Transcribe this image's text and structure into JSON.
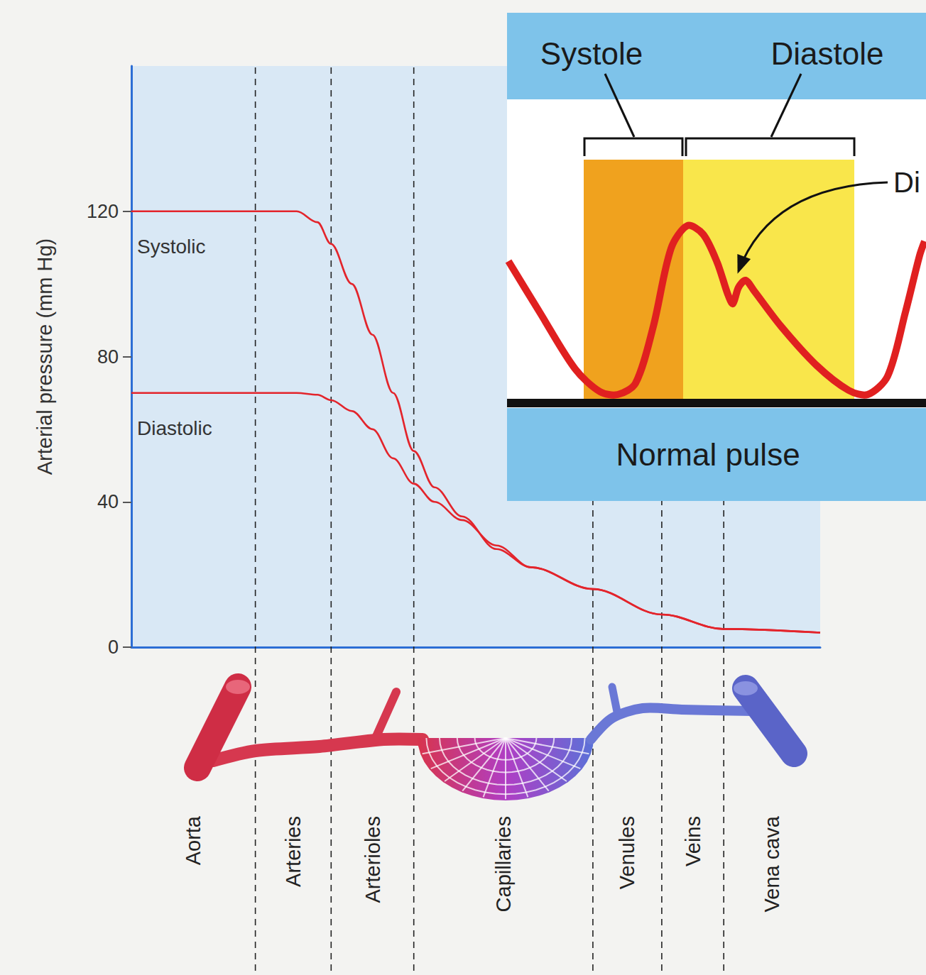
{
  "chart_data": {
    "type": "line",
    "y_label": "Arterial pressure (mm Hg)",
    "xlim": [
      0,
      100
    ],
    "ylim": [
      0,
      160
    ],
    "yticks": [
      0,
      40,
      80,
      120
    ],
    "grid": false,
    "tick_labels": "y",
    "regions": [
      {
        "label": "Aorta",
        "from": 0,
        "to": 18
      },
      {
        "label": "Arteries",
        "from": 18,
        "to": 29
      },
      {
        "label": "Arterioles",
        "from": 29,
        "to": 41
      },
      {
        "label": "Capillaries",
        "from": 41,
        "to": 67
      },
      {
        "label": "Venules",
        "from": 67,
        "to": 77
      },
      {
        "label": "Veins",
        "from": 77,
        "to": 86
      },
      {
        "label": "Vena cava",
        "from": 86,
        "to": 100
      }
    ],
    "x": [
      0,
      24,
      27,
      29,
      32,
      35,
      38,
      41,
      44,
      48,
      53,
      58,
      67,
      77,
      86,
      100
    ],
    "series": [
      {
        "name": "Systolic",
        "color": "#e3242b",
        "values": [
          120,
          120,
          117,
          111,
          100,
          86,
          70,
          54,
          44,
          36,
          27,
          22,
          16,
          9,
          5,
          4
        ]
      },
      {
        "name": "Diastolic",
        "color": "#e3242b",
        "values": [
          70,
          70,
          69.5,
          68,
          65,
          60,
          52,
          45,
          40,
          35,
          28,
          22,
          16,
          9,
          5,
          4
        ]
      }
    ]
  },
  "inset": {
    "phases": [
      "Systole",
      "Diastole"
    ],
    "annotation": "Di",
    "caption": "Normal pulse"
  }
}
